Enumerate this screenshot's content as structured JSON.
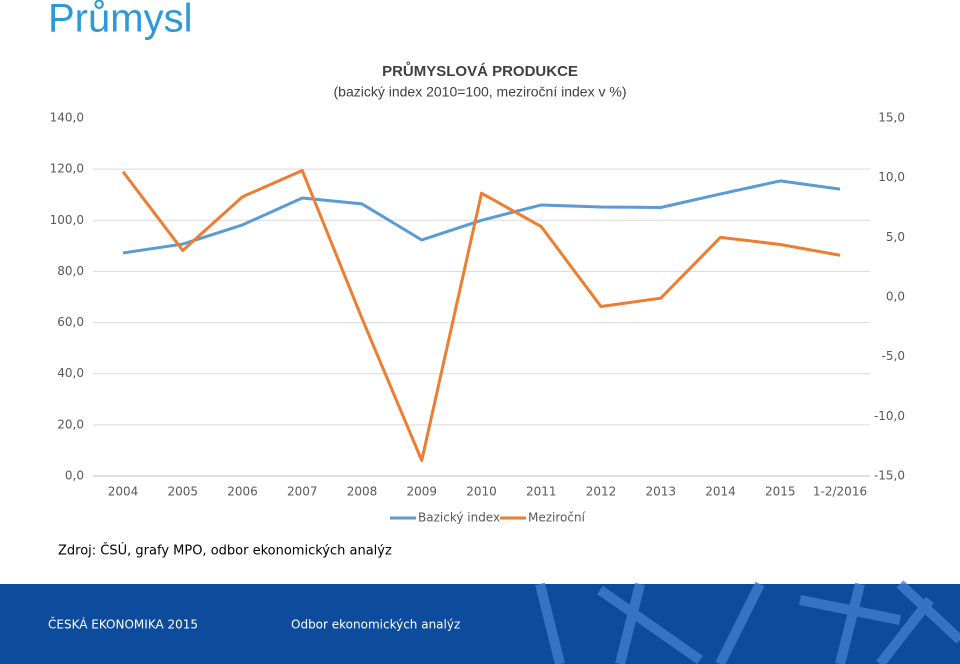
{
  "slide_title": "Průmysl",
  "chart_data": {
    "type": "line",
    "title": "PRŮMYSLOVÁ PRODUKCE",
    "subtitle": "(bazický index 2010=100, meziroční index v %)",
    "categories": [
      "2004",
      "2005",
      "2006",
      "2007",
      "2008",
      "2009",
      "2010",
      "2011",
      "2012",
      "2013",
      "2014",
      "2015",
      "1-2/2016"
    ],
    "series": [
      {
        "name": "Bazický index",
        "color": "#5b9bd5",
        "values": [
          87.2,
          90.7,
          98.2,
          108.7,
          106.4,
          92.3,
          100,
          106,
          105.2,
          105,
          110.3,
          115.4,
          112.2
        ]
      },
      {
        "name": "Meziroční",
        "color": "#ed7d31",
        "axis": "y2",
        "values": [
          10.5,
          3.9,
          8.4,
          10.6,
          -1.8,
          -13.7,
          8.7,
          5.9,
          -0.8,
          -0.1,
          5.0,
          4.4,
          3.5
        ]
      }
    ],
    "ylim": [
      0,
      140
    ],
    "yticks": [
      {
        "value": 0,
        "label": "0,0"
      },
      {
        "value": 20,
        "label": "20,0"
      },
      {
        "value": 40,
        "label": "40,0"
      },
      {
        "value": 60,
        "label": "60,0"
      },
      {
        "value": 80,
        "label": "80,0"
      },
      {
        "value": 100,
        "label": "100,0"
      },
      {
        "value": 120,
        "label": "120,0"
      },
      {
        "value": 140,
        "label": "140,0"
      }
    ],
    "y2lim": [
      -15,
      15
    ],
    "y2ticks": [
      {
        "value": -15,
        "label": "-15,0"
      },
      {
        "value": -10,
        "label": "-10,0"
      },
      {
        "value": -5,
        "label": "-5,0"
      },
      {
        "value": 0,
        "label": "0,0"
      },
      {
        "value": 5,
        "label": "5,0"
      },
      {
        "value": 10,
        "label": "10,0"
      },
      {
        "value": 15,
        "label": "15,0"
      }
    ],
    "grid": true,
    "legend": "bottom"
  },
  "source": "Zdroj: ČSÚ, grafy MPO, odbor ekonomických analýz",
  "footer": {
    "left": "ČESKÁ EKONOMIKA 2015",
    "center": "Odbor ekonomických analýz"
  }
}
